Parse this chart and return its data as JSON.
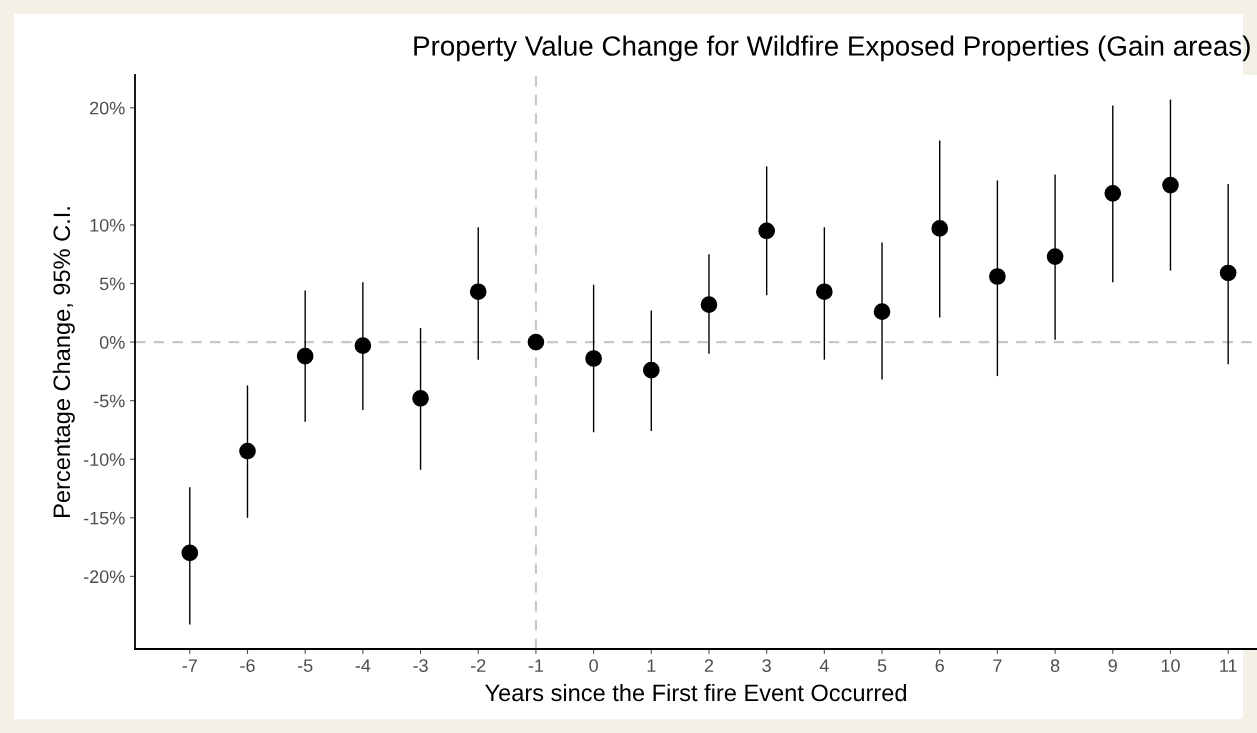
{
  "chart_data": {
    "type": "scatter",
    "title": "Property Value Change for Wildfire Exposed Properties (Gain areas)",
    "xlabel": "Years since the First fire Event Occurred",
    "ylabel": "Percentage Change, 95% C.I.",
    "x": [
      -7,
      -6,
      -5,
      -4,
      -3,
      -2,
      -1,
      0,
      1,
      2,
      3,
      4,
      5,
      6,
      7,
      8,
      9,
      10,
      11
    ],
    "series": [
      {
        "color": "#000000",
        "values": [
          -18.0,
          -9.3,
          -1.2,
          -0.3,
          -4.8,
          4.3,
          0,
          -1.4,
          -2.4,
          3.2,
          9.5,
          4.3,
          2.6,
          9.7,
          5.6,
          7.3,
          12.7,
          13.4,
          5.9
        ],
        "errors": [
          [
            -24.1,
            -12.4
          ],
          [
            -15.0,
            -3.7
          ],
          [
            -6.8,
            4.4
          ],
          [
            -5.8,
            5.1
          ],
          [
            -10.9,
            1.2
          ],
          [
            -1.5,
            9.8
          ],
          null,
          [
            -7.7,
            4.9
          ],
          [
            -7.6,
            2.7
          ],
          [
            -1.0,
            7.5
          ],
          [
            4.0,
            15.0
          ],
          [
            -1.5,
            9.8
          ],
          [
            -3.2,
            8.5
          ],
          [
            2.1,
            17.2
          ],
          [
            -2.9,
            13.8
          ],
          [
            0.2,
            14.3
          ],
          [
            5.1,
            20.2
          ],
          [
            6.1,
            20.7
          ],
          [
            -1.9,
            13.5
          ]
        ]
      }
    ],
    "xlim": [
      -7.95,
      11.5
    ],
    "xticks": [
      -7,
      -6,
      -5,
      -4,
      -3,
      -2,
      -1,
      0,
      1,
      2,
      3,
      4,
      5,
      6,
      7,
      8,
      9,
      10,
      11
    ],
    "ylim": [
      -26.2,
      22.8
    ],
    "yticks": [
      {
        "value": -20,
        "label": "-20%"
      },
      {
        "value": -15,
        "label": "-15%"
      },
      {
        "value": -10,
        "label": "-10%"
      },
      {
        "value": -5,
        "label": "-5%"
      },
      {
        "value": 0,
        "label": "0%"
      },
      {
        "value": 5,
        "label": "5%"
      },
      {
        "value": 10,
        "label": "10%"
      },
      {
        "value": 20,
        "label": "20%"
      }
    ],
    "ref_lines": [
      {
        "axis": "y",
        "value": 0,
        "color": "#c8c8c8",
        "line_style": "dashed"
      },
      {
        "axis": "x",
        "value": -1,
        "color": "#c8c8c8",
        "line_style": "dashed"
      }
    ],
    "marker": "circle",
    "grid": false,
    "legend": false
  }
}
